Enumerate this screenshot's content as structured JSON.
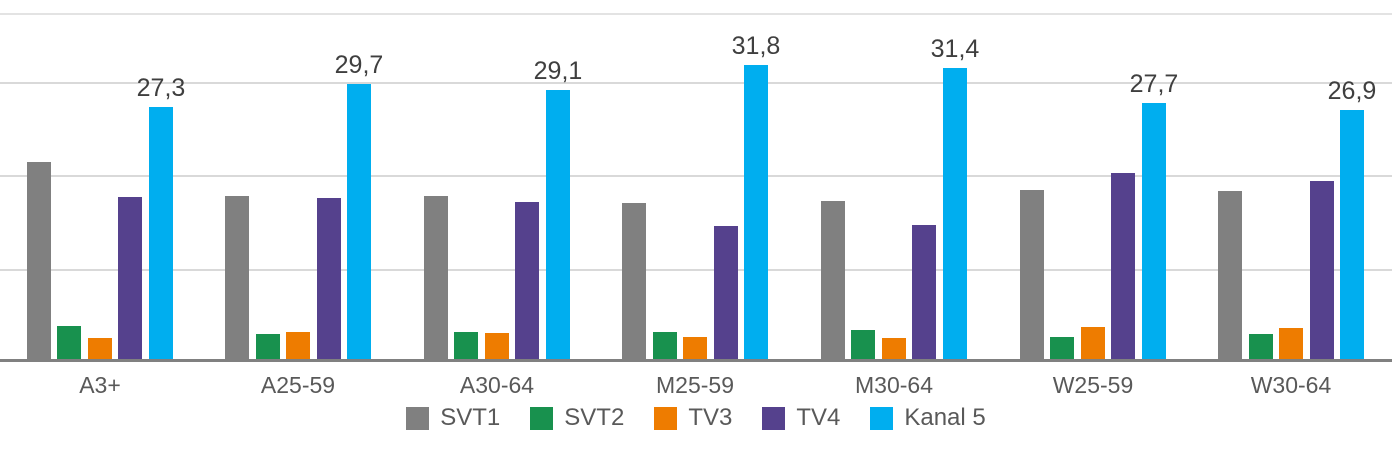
{
  "chart_data": {
    "type": "bar",
    "title": "",
    "categories": [
      "A3+",
      "A25-59",
      "A30-64",
      "M25-59",
      "M30-64",
      "W25-59",
      "W30-64"
    ],
    "series": [
      {
        "name": "SVT1",
        "color": "#808080",
        "values": [
          21.4,
          17.8,
          17.8,
          17.0,
          17.2,
          18.4,
          18.3
        ]
      },
      {
        "name": "SVT2",
        "color": "#18914E",
        "values": [
          3.9,
          3.0,
          3.2,
          3.2,
          3.4,
          2.7,
          3.0
        ]
      },
      {
        "name": "TV3",
        "color": "#EE7C00",
        "values": [
          2.6,
          3.2,
          3.1,
          2.7,
          2.6,
          3.7,
          3.6
        ]
      },
      {
        "name": "TV4",
        "color": "#55418D",
        "values": [
          17.7,
          17.5,
          17.1,
          14.5,
          14.6,
          20.2,
          19.4
        ]
      },
      {
        "name": "Kanal 5",
        "color": "#00AEEF",
        "values": [
          27.3,
          29.7,
          29.1,
          31.8,
          31.4,
          27.7,
          26.9
        ],
        "data_labels": [
          "27,3",
          "29,7",
          "29,1",
          "31,8",
          "31,4",
          "27,7",
          "26,9"
        ]
      }
    ],
    "ylim": [
      0,
      37.3
    ],
    "gridline_values": [
      10,
      20,
      30
    ],
    "grid_on": true,
    "y_axis_tick_labels_visible": false,
    "legend_position": "bottom",
    "legend_entries": [
      "SVT1",
      "SVT2",
      "TV3",
      "TV4",
      "Kanal 5"
    ],
    "colors": {
      "grid": "#d9d9d9",
      "axis_line": "#808080",
      "value_label_text": "#3f3f3f",
      "category_label_text": "#595959",
      "legend_text": "#595959"
    },
    "decimal_separator": ","
  }
}
